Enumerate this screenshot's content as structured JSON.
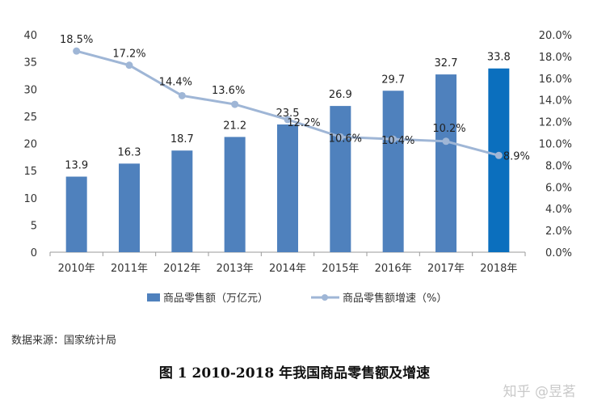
{
  "chart_data": {
    "type": "bar",
    "categories": [
      "2010年",
      "2011年",
      "2012年",
      "2013年",
      "2014年",
      "2015年",
      "2016年",
      "2017年",
      "2018年"
    ],
    "series": [
      {
        "name": "商品零售额（万亿元）",
        "type": "bar",
        "axis": "left",
        "values": [
          13.9,
          16.3,
          18.7,
          21.2,
          23.5,
          26.9,
          29.7,
          32.7,
          33.8
        ],
        "labels": [
          "13.9",
          "16.3",
          "18.7",
          "21.2",
          "23.5",
          "26.9",
          "29.7",
          "32.7",
          "33.8"
        ],
        "color": "#4f81bd",
        "highlight_color": "#0b6fbe"
      },
      {
        "name": "商品零售额增速（%）",
        "type": "line",
        "axis": "right",
        "values": [
          18.5,
          17.2,
          14.4,
          13.6,
          12.2,
          10.6,
          10.4,
          10.2,
          8.9
        ],
        "labels": [
          "18.5%",
          "17.2%",
          "14.4%",
          "13.6%",
          "12.2%",
          "10.6%",
          "10.4%",
          "10.2%",
          "8.9%"
        ],
        "color": "#9fb6d6"
      }
    ],
    "y_left": {
      "min": 0,
      "max": 40,
      "step": 5,
      "ticks": [
        "0",
        "5",
        "10",
        "15",
        "20",
        "25",
        "30",
        "35",
        "40"
      ]
    },
    "y_right": {
      "min": 0,
      "max": 20,
      "step": 2,
      "ticks": [
        "0.0%",
        "2.0%",
        "4.0%",
        "6.0%",
        "8.0%",
        "10.0%",
        "12.0%",
        "14.0%",
        "16.0%",
        "18.0%",
        "20.0%"
      ]
    },
    "legend_position": "bottom"
  },
  "source": "数据来源：国家统计局",
  "caption": "图 1  2010-2018 年我国商品零售额及增速",
  "watermark": "知乎 @昱茗"
}
